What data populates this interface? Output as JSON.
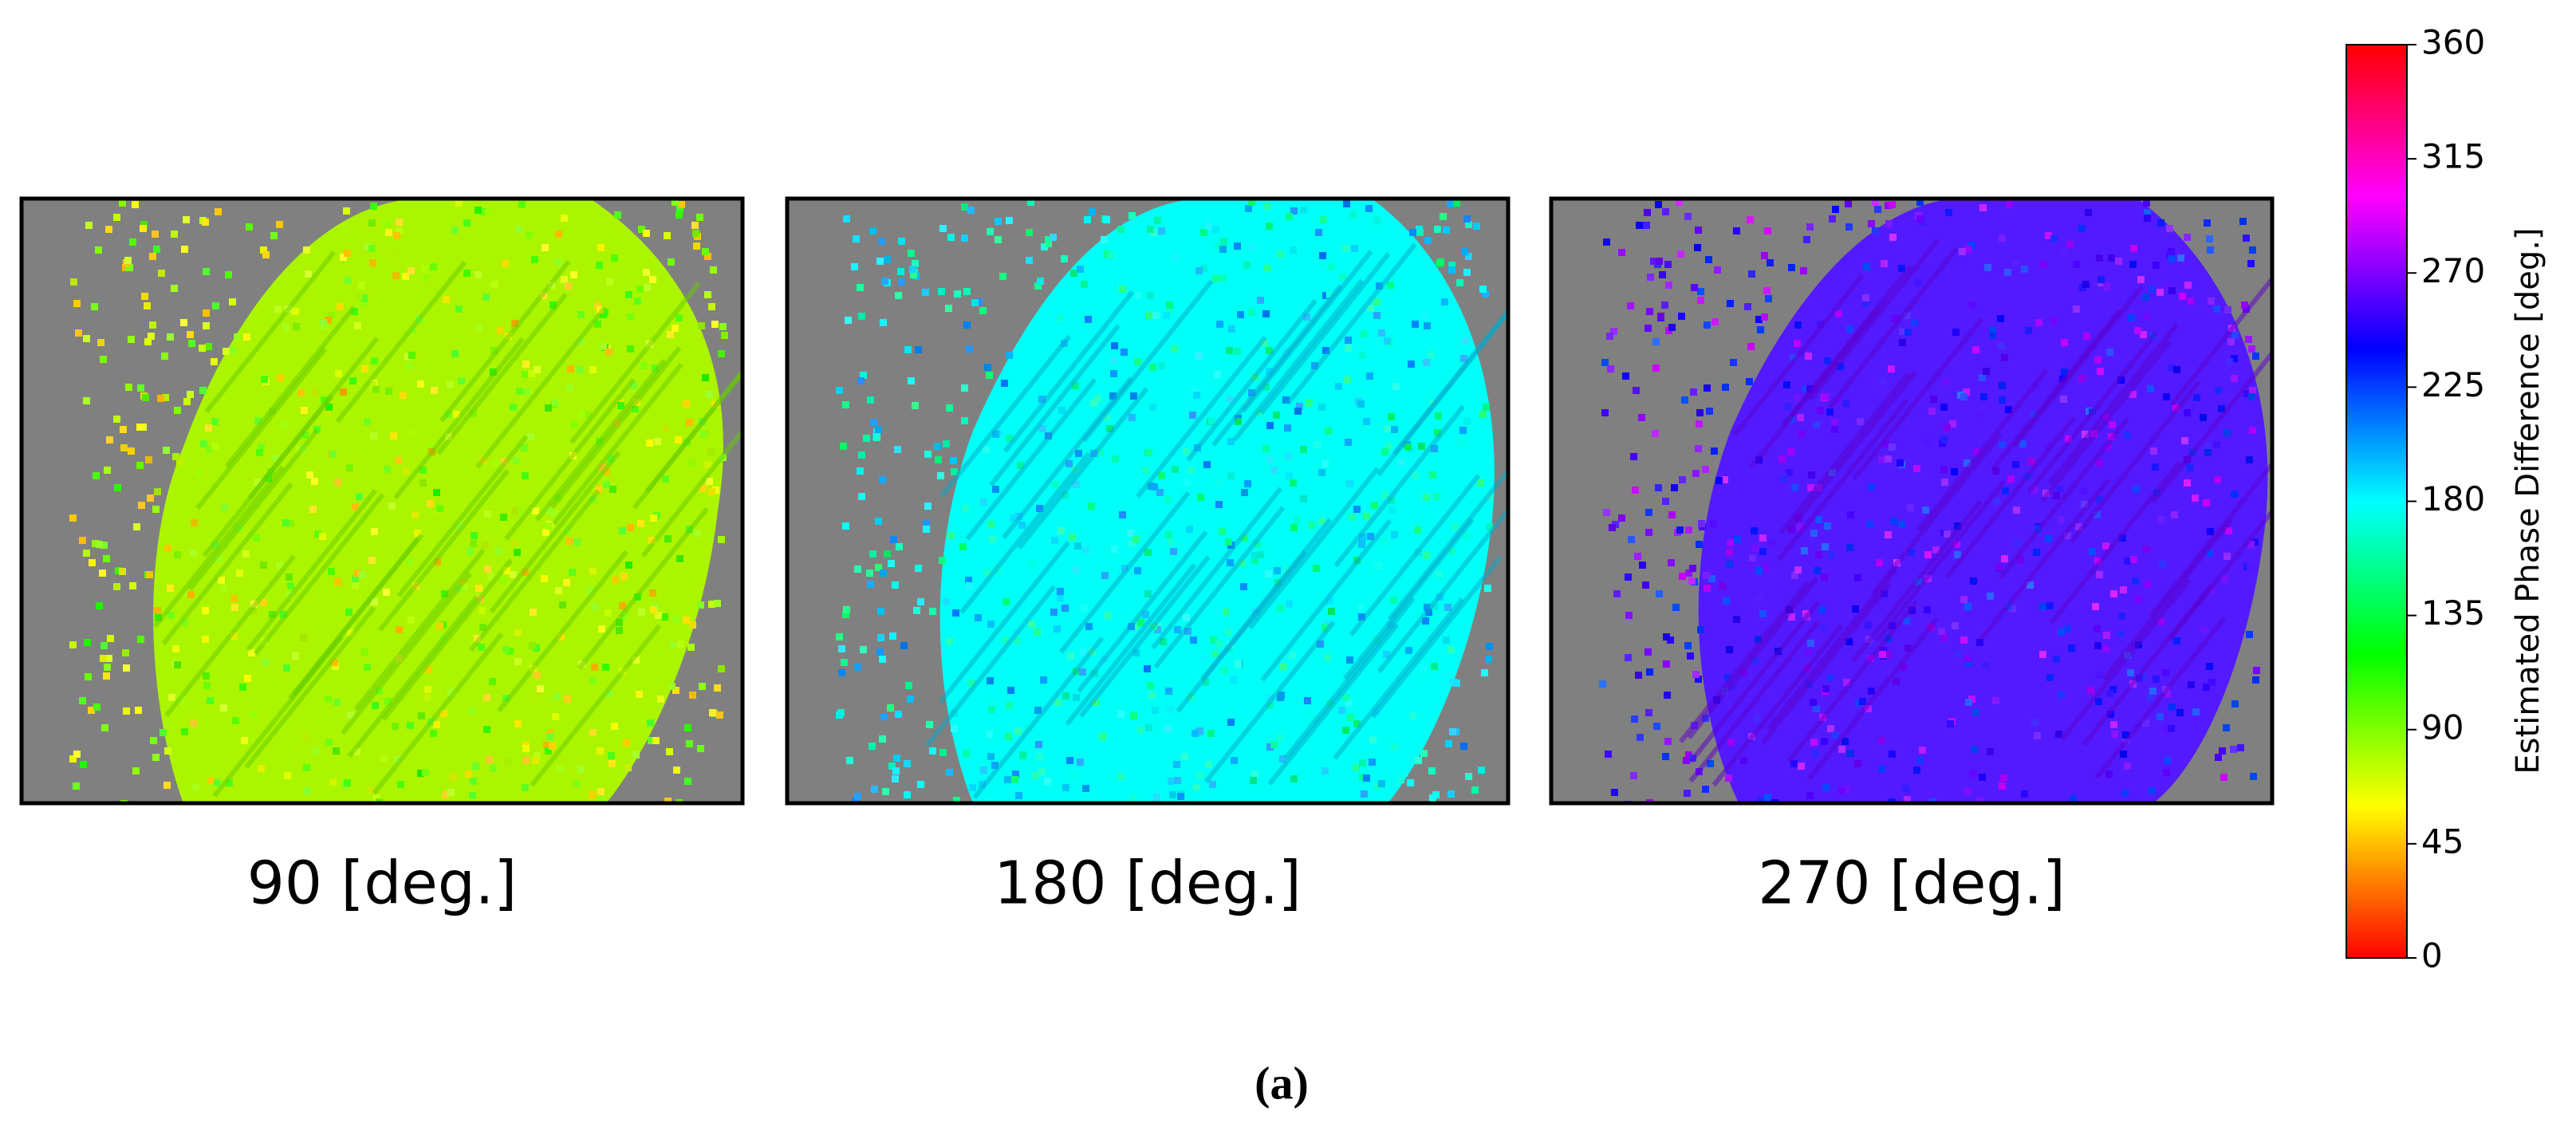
{
  "panels": [
    {
      "label": "90 [deg.]"
    },
    {
      "label": "180 [deg.]"
    },
    {
      "label": "270 [deg.]"
    }
  ],
  "colorbar": {
    "label": "Estimated Phase Difference [deg.]",
    "lim": [
      0,
      360
    ],
    "ticks": [
      0,
      45,
      90,
      135,
      180,
      225,
      270,
      315,
      360
    ]
  },
  "caption": "(a)"
}
